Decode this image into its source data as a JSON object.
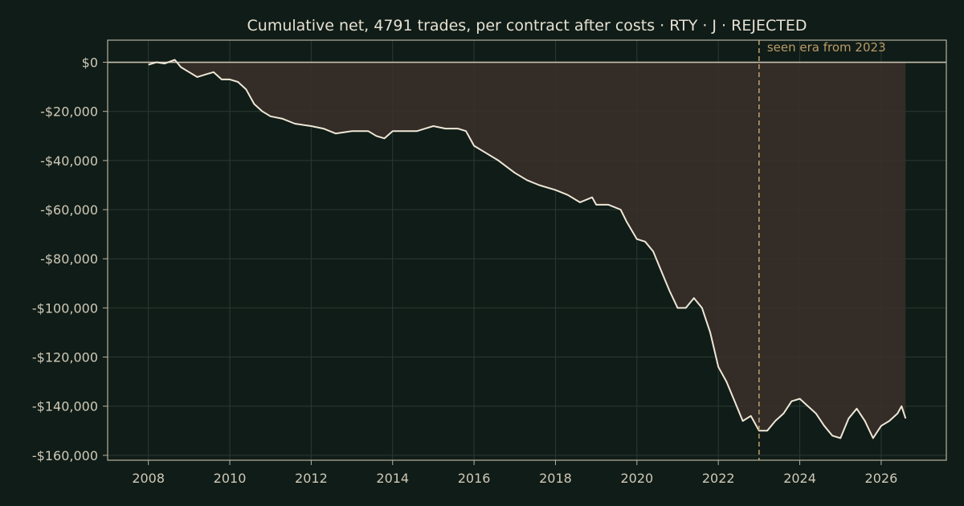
{
  "chart_data": {
    "type": "area",
    "title": "Cumulative net, 4791 trades, per contract after costs  ·  RTY · J · REJECTED",
    "xlabel": "",
    "ylabel": "",
    "xlim": [
      2007.0,
      2027.6
    ],
    "ylim": [
      -162000,
      9000
    ],
    "x_ticks": [
      2008,
      2010,
      2012,
      2014,
      2016,
      2018,
      2020,
      2022,
      2024,
      2026
    ],
    "x_tick_labels": [
      "2008",
      "2010",
      "2012",
      "2014",
      "2016",
      "2018",
      "2020",
      "2022",
      "2024",
      "2026"
    ],
    "y_ticks": [
      0,
      -20000,
      -40000,
      -60000,
      -80000,
      -100000,
      -120000,
      -140000,
      -160000
    ],
    "y_tick_labels": [
      "$0",
      "-$20,000",
      "-$40,000",
      "-$60,000",
      "-$80,000",
      "-$100,000",
      "-$120,000",
      "-$140,000",
      "-$160,000"
    ],
    "grid": true,
    "annotation": {
      "x": 2023.0,
      "label": "seen era from 2023"
    },
    "series": [
      {
        "x": [
          2008.0,
          2008.2,
          2008.4,
          2008.65,
          2008.8,
          2009.0,
          2009.2,
          2009.4,
          2009.6,
          2009.8,
          2010.0,
          2010.2,
          2010.4,
          2010.6,
          2010.8,
          2011.0,
          2011.3,
          2011.6,
          2012.0,
          2012.3,
          2012.6,
          2013.0,
          2013.4,
          2013.6,
          2013.8,
          2014.0,
          2014.3,
          2014.6,
          2014.8,
          2015.0,
          2015.3,
          2015.6,
          2015.8,
          2016.0,
          2016.3,
          2016.6,
          2017.0,
          2017.3,
          2017.6,
          2018.0,
          2018.3,
          2018.6,
          2018.9,
          2019.0,
          2019.3,
          2019.6,
          2019.75,
          2020.0,
          2020.2,
          2020.4,
          2020.6,
          2020.8,
          2021.0,
          2021.2,
          2021.4,
          2021.6,
          2021.8,
          2022.0,
          2022.2,
          2022.4,
          2022.6,
          2022.8,
          2023.0,
          2023.2,
          2023.4,
          2023.6,
          2023.8,
          2024.0,
          2024.2,
          2024.4,
          2024.6,
          2024.8,
          2025.0,
          2025.2,
          2025.4,
          2025.6,
          2025.8,
          2026.0,
          2026.2,
          2026.4,
          2026.5,
          2026.6
        ],
        "values": [
          -1000,
          0,
          -500,
          1000,
          -2000,
          -4000,
          -6000,
          -5000,
          -4000,
          -7000,
          -7000,
          -8000,
          -11000,
          -17000,
          -20000,
          -22000,
          -23000,
          -25000,
          -26000,
          -27000,
          -29000,
          -28000,
          -28000,
          -30000,
          -31000,
          -28000,
          -28000,
          -28000,
          -27000,
          -26000,
          -27000,
          -27000,
          -28000,
          -34000,
          -37000,
          -40000,
          -45000,
          -48000,
          -50000,
          -52000,
          -54000,
          -57000,
          -55000,
          -58000,
          -58000,
          -60000,
          -65000,
          -72000,
          -73000,
          -77000,
          -85000,
          -93000,
          -100000,
          -100000,
          -96000,
          -100000,
          -110000,
          -124000,
          -130000,
          -138000,
          -146000,
          -144000,
          -150000,
          -150000,
          -146000,
          -143000,
          -138000,
          -137000,
          -140000,
          -143000,
          -148000,
          -152000,
          -153000,
          -145000,
          -141000,
          -146000,
          -153000,
          -148000,
          -146000,
          -143000,
          -140000,
          -145000
        ]
      }
    ]
  }
}
